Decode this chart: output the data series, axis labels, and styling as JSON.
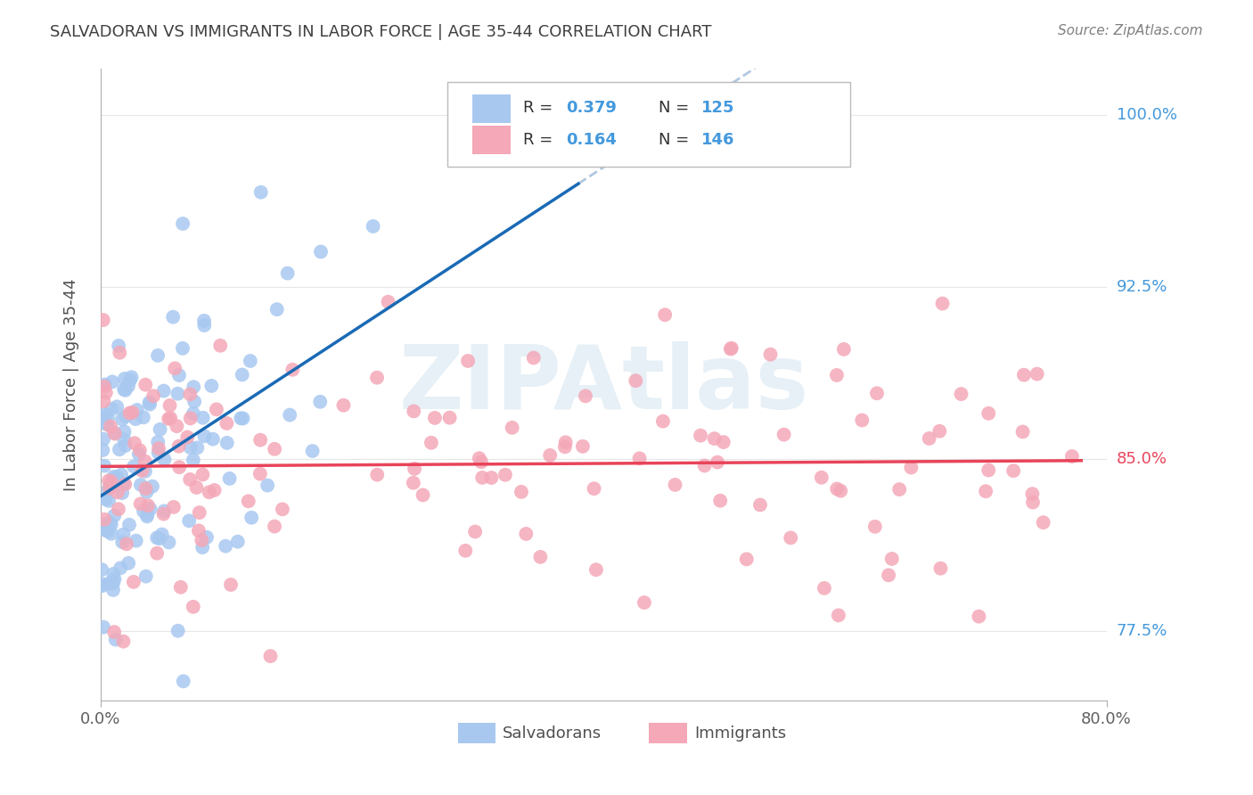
{
  "title": "SALVADORAN VS IMMIGRANTS IN LABOR FORCE | AGE 35-44 CORRELATION CHART",
  "source": "Source: ZipAtlas.com",
  "xlabel_ticks": [
    "0.0%",
    "80.0%"
  ],
  "ylabel_label": "In Labor Force | Age 35-44",
  "ylabel_ticks": [
    "77.5%",
    "85.0%",
    "92.5%",
    "100.0%"
  ],
  "xlim": [
    0.0,
    0.8
  ],
  "ylim": [
    0.745,
    1.02
  ],
  "ytick_positions": [
    0.775,
    0.85,
    0.925,
    1.0
  ],
  "xtick_positions": [
    0.0,
    0.8
  ],
  "salvadoran_R": 0.379,
  "salvadoran_N": 125,
  "immigrant_R": 0.164,
  "immigrant_N": 146,
  "salvadoran_color": "#a8c8f0",
  "immigrant_color": "#f4a8b8",
  "salvadoran_line_color": "#1a6ab5",
  "immigrant_line_color": "#e8445a",
  "dashed_line_color": "#b0c8e0",
  "background_color": "#ffffff",
  "grid_color": "#e0e0e0",
  "watermark_text": "ZIPAtlas",
  "seed": 42,
  "title_color": "#404040",
  "source_color": "#808080",
  "right_label_color": "#4499dd",
  "right_label_85_color": "#e8445a"
}
